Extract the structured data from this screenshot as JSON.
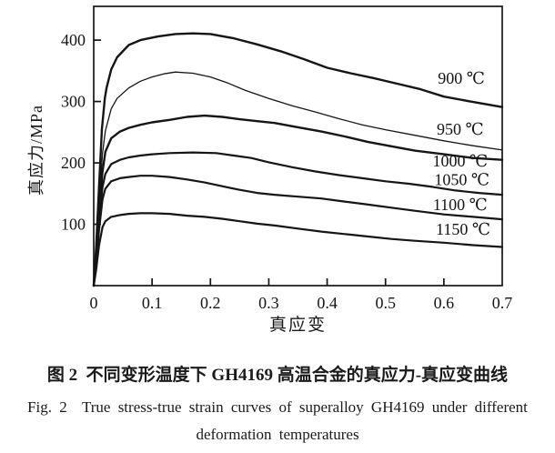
{
  "page": {
    "background": "#ffffff",
    "ink_color": "#151515"
  },
  "figure_caption": {
    "zh": "图 2  不同变形温度下 GH4169 高温合金的真应力-真应变曲线",
    "en_line1": "Fig. 2  True stress-true strain curves of superalloy GH4169 under different",
    "en_line2": "deformation temperatures"
  },
  "chart_data": {
    "type": "line",
    "title": "",
    "xlabel": "真应变",
    "ylabel": "真应力/MPa",
    "xlim": [
      0,
      0.7
    ],
    "ylim": [
      0,
      455
    ],
    "x_ticks": [
      0,
      0.1,
      0.2,
      0.3,
      0.4,
      0.5,
      0.6,
      0.7
    ],
    "y_ticks": [
      100,
      200,
      300,
      400
    ],
    "grid": false,
    "frame": true,
    "legend_position": "inline-right",
    "line_color": "#151515",
    "series": [
      {
        "name": "900 ℃",
        "linewidth": 2.4,
        "label_xy": [
          0.63,
          338
        ],
        "points": [
          [
            0,
            0
          ],
          [
            0.004,
            60
          ],
          [
            0.009,
            160
          ],
          [
            0.014,
            255
          ],
          [
            0.019,
            305
          ],
          [
            0.022,
            322
          ],
          [
            0.03,
            352
          ],
          [
            0.04,
            372
          ],
          [
            0.06,
            392
          ],
          [
            0.08,
            400
          ],
          [
            0.11,
            406
          ],
          [
            0.14,
            410
          ],
          [
            0.17,
            411
          ],
          [
            0.2,
            410
          ],
          [
            0.24,
            403
          ],
          [
            0.28,
            393
          ],
          [
            0.32,
            382
          ],
          [
            0.36,
            369
          ],
          [
            0.4,
            355
          ],
          [
            0.44,
            346
          ],
          [
            0.48,
            338
          ],
          [
            0.52,
            329
          ],
          [
            0.56,
            320
          ],
          [
            0.6,
            308
          ],
          [
            0.64,
            301
          ],
          [
            0.67,
            296
          ],
          [
            0.7,
            291
          ]
        ]
      },
      {
        "name": "950 ℃",
        "linewidth": 1.3,
        "label_xy": [
          0.628,
          255
        ],
        "points": [
          [
            0,
            0
          ],
          [
            0.004,
            50
          ],
          [
            0.009,
            130
          ],
          [
            0.015,
            215
          ],
          [
            0.02,
            252
          ],
          [
            0.03,
            288
          ],
          [
            0.04,
            305
          ],
          [
            0.06,
            322
          ],
          [
            0.08,
            333
          ],
          [
            0.1,
            340
          ],
          [
            0.12,
            345
          ],
          [
            0.14,
            348
          ],
          [
            0.17,
            346
          ],
          [
            0.2,
            340
          ],
          [
            0.23,
            330
          ],
          [
            0.26,
            318
          ],
          [
            0.3,
            305
          ],
          [
            0.34,
            293
          ],
          [
            0.38,
            283
          ],
          [
            0.42,
            272
          ],
          [
            0.46,
            262
          ],
          [
            0.5,
            254
          ],
          [
            0.55,
            245
          ],
          [
            0.6,
            236
          ],
          [
            0.65,
            228
          ],
          [
            0.7,
            221
          ]
        ]
      },
      {
        "name": "1000 ℃",
        "linewidth": 2.4,
        "label_xy": [
          0.628,
          203
        ],
        "points": [
          [
            0,
            0
          ],
          [
            0.004,
            45
          ],
          [
            0.009,
            115
          ],
          [
            0.015,
            185
          ],
          [
            0.02,
            218
          ],
          [
            0.03,
            240
          ],
          [
            0.045,
            251
          ],
          [
            0.06,
            257
          ],
          [
            0.08,
            262
          ],
          [
            0.1,
            266
          ],
          [
            0.13,
            270
          ],
          [
            0.16,
            275
          ],
          [
            0.19,
            277
          ],
          [
            0.22,
            275
          ],
          [
            0.25,
            271
          ],
          [
            0.28,
            268
          ],
          [
            0.31,
            265
          ],
          [
            0.35,
            258
          ],
          [
            0.39,
            251
          ],
          [
            0.43,
            243
          ],
          [
            0.47,
            234
          ],
          [
            0.51,
            227
          ],
          [
            0.55,
            220
          ],
          [
            0.6,
            214
          ],
          [
            0.65,
            208
          ],
          [
            0.7,
            205
          ]
        ]
      },
      {
        "name": "1050 ℃",
        "linewidth": 2.2,
        "label_xy": [
          0.631,
          173
        ],
        "points": [
          [
            0,
            0
          ],
          [
            0.004,
            40
          ],
          [
            0.009,
            100
          ],
          [
            0.015,
            160
          ],
          [
            0.02,
            182
          ],
          [
            0.03,
            198
          ],
          [
            0.045,
            205
          ],
          [
            0.06,
            209
          ],
          [
            0.08,
            212
          ],
          [
            0.1,
            214
          ],
          [
            0.13,
            216
          ],
          [
            0.17,
            217
          ],
          [
            0.21,
            216
          ],
          [
            0.24,
            212
          ],
          [
            0.27,
            208
          ],
          [
            0.3,
            201
          ],
          [
            0.34,
            193
          ],
          [
            0.38,
            186
          ],
          [
            0.42,
            180
          ],
          [
            0.46,
            175
          ],
          [
            0.5,
            170
          ],
          [
            0.54,
            166
          ],
          [
            0.58,
            161
          ],
          [
            0.62,
            155
          ],
          [
            0.66,
            151
          ],
          [
            0.7,
            148
          ]
        ]
      },
      {
        "name": "1100 ℃",
        "linewidth": 2.2,
        "label_xy": [
          0.628,
          132
        ],
        "points": [
          [
            0,
            0
          ],
          [
            0.004,
            35
          ],
          [
            0.009,
            90
          ],
          [
            0.015,
            140
          ],
          [
            0.02,
            158
          ],
          [
            0.03,
            170
          ],
          [
            0.045,
            175
          ],
          [
            0.06,
            177
          ],
          [
            0.08,
            179
          ],
          [
            0.1,
            179
          ],
          [
            0.13,
            177
          ],
          [
            0.16,
            173
          ],
          [
            0.19,
            168
          ],
          [
            0.22,
            162
          ],
          [
            0.25,
            156
          ],
          [
            0.28,
            151
          ],
          [
            0.31,
            148
          ],
          [
            0.35,
            145
          ],
          [
            0.39,
            142
          ],
          [
            0.43,
            137
          ],
          [
            0.47,
            132
          ],
          [
            0.51,
            127
          ],
          [
            0.55,
            122
          ],
          [
            0.6,
            116
          ],
          [
            0.65,
            112
          ],
          [
            0.7,
            108
          ]
        ]
      },
      {
        "name": "1150 ℃",
        "linewidth": 2.2,
        "label_xy": [
          0.633,
          92
        ],
        "points": [
          [
            0,
            0
          ],
          [
            0.004,
            25
          ],
          [
            0.009,
            65
          ],
          [
            0.015,
            95
          ],
          [
            0.02,
            105
          ],
          [
            0.03,
            112
          ],
          [
            0.045,
            115
          ],
          [
            0.06,
            117
          ],
          [
            0.08,
            118
          ],
          [
            0.1,
            118
          ],
          [
            0.13,
            117
          ],
          [
            0.16,
            114
          ],
          [
            0.19,
            112
          ],
          [
            0.22,
            109
          ],
          [
            0.25,
            105
          ],
          [
            0.28,
            101
          ],
          [
            0.31,
            98
          ],
          [
            0.35,
            93
          ],
          [
            0.39,
            88
          ],
          [
            0.43,
            84
          ],
          [
            0.47,
            80
          ],
          [
            0.51,
            76
          ],
          [
            0.55,
            73
          ],
          [
            0.6,
            70
          ],
          [
            0.65,
            66
          ],
          [
            0.7,
            63
          ]
        ]
      }
    ]
  }
}
